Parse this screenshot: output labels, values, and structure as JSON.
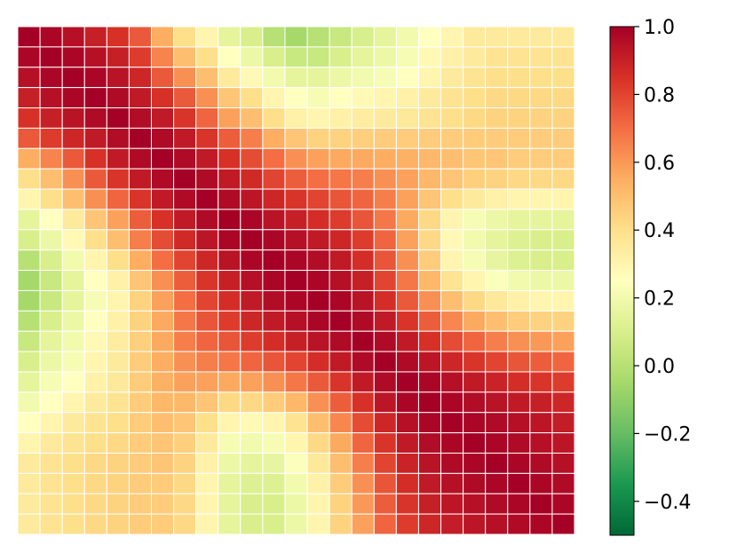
{
  "chart_data": {
    "type": "heatmap",
    "rows": 25,
    "cols": 25,
    "colormap": "RdYlGn_r",
    "vmin": -0.5,
    "vmax": 1.0,
    "grid_lines": true,
    "grid_color": "#ffffff",
    "colorbar": {
      "position": "right",
      "ticks": [
        -0.4,
        -0.2,
        0.0,
        0.2,
        0.4,
        0.6,
        0.8,
        1.0
      ],
      "tick_labels": [
        "−0.4",
        "−0.2",
        "0.0",
        "0.2",
        "0.4",
        "0.6",
        "0.8",
        "1.0"
      ]
    },
    "colormap_stops": [
      {
        "v": -0.5,
        "color": "#006837"
      },
      {
        "v": -0.35,
        "color": "#1a9850"
      },
      {
        "v": -0.2,
        "color": "#66bd63"
      },
      {
        "v": -0.05,
        "color": "#a6d96a"
      },
      {
        "v": 0.1,
        "color": "#d9ef8b"
      },
      {
        "v": 0.25,
        "color": "#ffffbf"
      },
      {
        "v": 0.4,
        "color": "#fee08b"
      },
      {
        "v": 0.55,
        "color": "#fdae61"
      },
      {
        "v": 0.7,
        "color": "#f46d43"
      },
      {
        "v": 0.85,
        "color": "#d73027"
      },
      {
        "v": 1.0,
        "color": "#a50026"
      }
    ],
    "values": [
      [
        1.0,
        0.98,
        0.95,
        0.9,
        0.85,
        0.75,
        0.55,
        0.4,
        0.3,
        0.15,
        0.1,
        0.0,
        -0.05,
        0.0,
        0.05,
        0.1,
        0.15,
        0.2,
        0.25,
        0.3,
        0.35,
        0.35,
        0.35,
        0.35,
        0.35
      ],
      [
        0.98,
        1.0,
        0.98,
        0.95,
        0.9,
        0.82,
        0.65,
        0.5,
        0.4,
        0.25,
        0.18,
        0.1,
        0.05,
        0.05,
        0.1,
        0.15,
        0.18,
        0.22,
        0.28,
        0.32,
        0.35,
        0.38,
        0.38,
        0.38,
        0.38
      ],
      [
        0.95,
        0.98,
        1.0,
        0.98,
        0.94,
        0.88,
        0.75,
        0.62,
        0.5,
        0.35,
        0.28,
        0.2,
        0.15,
        0.15,
        0.18,
        0.2,
        0.22,
        0.25,
        0.3,
        0.35,
        0.38,
        0.4,
        0.4,
        0.4,
        0.4
      ],
      [
        0.9,
        0.95,
        0.98,
        1.0,
        0.97,
        0.92,
        0.85,
        0.75,
        0.62,
        0.48,
        0.4,
        0.3,
        0.25,
        0.22,
        0.25,
        0.28,
        0.3,
        0.32,
        0.35,
        0.38,
        0.4,
        0.42,
        0.42,
        0.42,
        0.42
      ],
      [
        0.85,
        0.9,
        0.94,
        0.97,
        1.0,
        0.96,
        0.92,
        0.84,
        0.72,
        0.58,
        0.5,
        0.4,
        0.32,
        0.3,
        0.32,
        0.34,
        0.35,
        0.36,
        0.38,
        0.4,
        0.42,
        0.44,
        0.44,
        0.44,
        0.44
      ],
      [
        0.75,
        0.82,
        0.88,
        0.92,
        0.96,
        1.0,
        0.97,
        0.92,
        0.84,
        0.74,
        0.66,
        0.55,
        0.48,
        0.44,
        0.44,
        0.45,
        0.46,
        0.46,
        0.46,
        0.46,
        0.46,
        0.46,
        0.46,
        0.46,
        0.46
      ],
      [
        0.55,
        0.65,
        0.75,
        0.85,
        0.92,
        0.97,
        1.0,
        0.97,
        0.92,
        0.85,
        0.78,
        0.7,
        0.62,
        0.58,
        0.56,
        0.56,
        0.55,
        0.54,
        0.52,
        0.5,
        0.48,
        0.48,
        0.46,
        0.46,
        0.46
      ],
      [
        0.4,
        0.5,
        0.62,
        0.75,
        0.84,
        0.92,
        0.97,
        1.0,
        0.97,
        0.92,
        0.87,
        0.8,
        0.74,
        0.7,
        0.68,
        0.66,
        0.62,
        0.58,
        0.52,
        0.48,
        0.45,
        0.44,
        0.42,
        0.42,
        0.42
      ],
      [
        0.3,
        0.4,
        0.5,
        0.62,
        0.72,
        0.84,
        0.92,
        0.97,
        1.0,
        0.97,
        0.93,
        0.88,
        0.84,
        0.8,
        0.76,
        0.72,
        0.66,
        0.58,
        0.48,
        0.4,
        0.35,
        0.32,
        0.3,
        0.3,
        0.3
      ],
      [
        0.15,
        0.25,
        0.35,
        0.48,
        0.58,
        0.74,
        0.85,
        0.92,
        0.97,
        1.0,
        0.98,
        0.94,
        0.9,
        0.86,
        0.82,
        0.76,
        0.68,
        0.56,
        0.42,
        0.3,
        0.22,
        0.18,
        0.15,
        0.15,
        0.15
      ],
      [
        0.1,
        0.18,
        0.28,
        0.4,
        0.5,
        0.66,
        0.78,
        0.87,
        0.93,
        0.98,
        1.0,
        0.98,
        0.95,
        0.92,
        0.88,
        0.82,
        0.72,
        0.58,
        0.42,
        0.28,
        0.2,
        0.15,
        0.12,
        0.1,
        0.1
      ],
      [
        0.0,
        0.1,
        0.2,
        0.3,
        0.4,
        0.55,
        0.7,
        0.8,
        0.88,
        0.94,
        0.98,
        1.0,
        0.98,
        0.96,
        0.92,
        0.86,
        0.76,
        0.62,
        0.46,
        0.3,
        0.22,
        0.16,
        0.12,
        0.1,
        0.1
      ],
      [
        -0.05,
        0.05,
        0.15,
        0.25,
        0.32,
        0.48,
        0.62,
        0.74,
        0.84,
        0.9,
        0.95,
        0.98,
        1.0,
        0.98,
        0.95,
        0.9,
        0.8,
        0.68,
        0.52,
        0.38,
        0.3,
        0.24,
        0.2,
        0.18,
        0.18
      ],
      [
        -0.05,
        0.05,
        0.15,
        0.22,
        0.3,
        0.44,
        0.58,
        0.7,
        0.8,
        0.86,
        0.92,
        0.96,
        0.98,
        1.0,
        0.98,
        0.94,
        0.86,
        0.75,
        0.62,
        0.5,
        0.42,
        0.36,
        0.32,
        0.3,
        0.3
      ],
      [
        0.0,
        0.1,
        0.18,
        0.25,
        0.32,
        0.44,
        0.56,
        0.68,
        0.76,
        0.82,
        0.88,
        0.92,
        0.95,
        0.98,
        1.0,
        0.97,
        0.92,
        0.84,
        0.74,
        0.64,
        0.56,
        0.5,
        0.46,
        0.44,
        0.44
      ],
      [
        0.05,
        0.15,
        0.2,
        0.28,
        0.34,
        0.45,
        0.56,
        0.66,
        0.72,
        0.76,
        0.82,
        0.86,
        0.9,
        0.94,
        0.97,
        1.0,
        0.97,
        0.92,
        0.85,
        0.78,
        0.72,
        0.66,
        0.62,
        0.6,
        0.58
      ],
      [
        0.1,
        0.18,
        0.22,
        0.3,
        0.35,
        0.46,
        0.55,
        0.62,
        0.66,
        0.68,
        0.72,
        0.76,
        0.8,
        0.86,
        0.92,
        0.97,
        1.0,
        0.97,
        0.93,
        0.88,
        0.84,
        0.8,
        0.76,
        0.74,
        0.72
      ],
      [
        0.15,
        0.22,
        0.25,
        0.32,
        0.36,
        0.46,
        0.54,
        0.58,
        0.58,
        0.56,
        0.58,
        0.62,
        0.68,
        0.75,
        0.84,
        0.92,
        0.97,
        1.0,
        0.98,
        0.95,
        0.92,
        0.89,
        0.86,
        0.84,
        0.82
      ],
      [
        0.2,
        0.25,
        0.3,
        0.35,
        0.38,
        0.46,
        0.52,
        0.52,
        0.48,
        0.42,
        0.42,
        0.46,
        0.52,
        0.62,
        0.74,
        0.85,
        0.93,
        0.98,
        1.0,
        0.98,
        0.96,
        0.94,
        0.92,
        0.9,
        0.88
      ],
      [
        0.25,
        0.3,
        0.35,
        0.38,
        0.4,
        0.46,
        0.5,
        0.48,
        0.4,
        0.3,
        0.28,
        0.3,
        0.38,
        0.5,
        0.64,
        0.78,
        0.88,
        0.95,
        0.98,
        1.0,
        0.98,
        0.97,
        0.95,
        0.93,
        0.91
      ],
      [
        0.3,
        0.35,
        0.38,
        0.4,
        0.42,
        0.46,
        0.48,
        0.45,
        0.35,
        0.22,
        0.2,
        0.22,
        0.3,
        0.42,
        0.56,
        0.72,
        0.84,
        0.92,
        0.96,
        0.98,
        1.0,
        0.98,
        0.97,
        0.95,
        0.93
      ],
      [
        0.35,
        0.38,
        0.4,
        0.42,
        0.44,
        0.46,
        0.48,
        0.44,
        0.32,
        0.18,
        0.15,
        0.16,
        0.24,
        0.36,
        0.5,
        0.66,
        0.8,
        0.89,
        0.94,
        0.97,
        0.98,
        1.0,
        0.98,
        0.97,
        0.95
      ],
      [
        0.35,
        0.38,
        0.4,
        0.42,
        0.44,
        0.46,
        0.46,
        0.42,
        0.3,
        0.15,
        0.12,
        0.12,
        0.2,
        0.32,
        0.46,
        0.62,
        0.76,
        0.86,
        0.92,
        0.95,
        0.97,
        0.98,
        1.0,
        0.98,
        0.97
      ],
      [
        0.35,
        0.38,
        0.4,
        0.42,
        0.44,
        0.46,
        0.46,
        0.42,
        0.3,
        0.15,
        0.1,
        0.1,
        0.18,
        0.3,
        0.44,
        0.6,
        0.74,
        0.84,
        0.9,
        0.93,
        0.95,
        0.97,
        0.98,
        1.0,
        0.98
      ],
      [
        0.35,
        0.38,
        0.4,
        0.42,
        0.44,
        0.46,
        0.46,
        0.42,
        0.3,
        0.15,
        0.1,
        0.1,
        0.18,
        0.3,
        0.44,
        0.58,
        0.72,
        0.82,
        0.88,
        0.91,
        0.93,
        0.95,
        0.97,
        0.98,
        1.0
      ]
    ]
  }
}
